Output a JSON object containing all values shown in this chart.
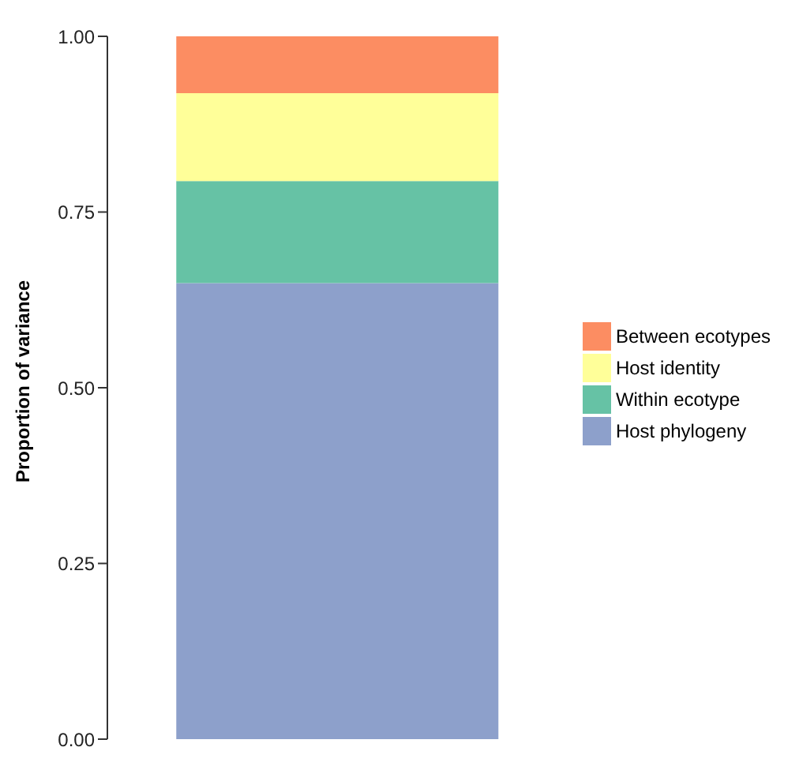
{
  "chart_data": {
    "type": "bar",
    "stacked": true,
    "ylabel": "Proportion of variance",
    "categories": [
      null
    ],
    "series": [
      {
        "name": "Host phylogeny",
        "color": "#8da0cb",
        "values": [
          0.649
        ]
      },
      {
        "name": "Within ecotype",
        "color": "#66c2a5",
        "values": [
          0.145
        ]
      },
      {
        "name": "Host identity",
        "color": "#ffff99",
        "values": [
          0.125
        ]
      },
      {
        "name": "Between ecotypes",
        "color": "#fc8d62",
        "values": [
          0.081
        ]
      }
    ],
    "ylim": [
      0,
      1
    ],
    "yticks": [
      {
        "value": 0,
        "label": "0.00"
      },
      {
        "value": 0.25,
        "label": "0.25"
      },
      {
        "value": 0.5,
        "label": "0.50"
      },
      {
        "value": 0.75,
        "label": "0.75"
      },
      {
        "value": 1,
        "label": "1.00"
      }
    ],
    "grid": false,
    "legend": "right",
    "tick_labels": "y"
  }
}
